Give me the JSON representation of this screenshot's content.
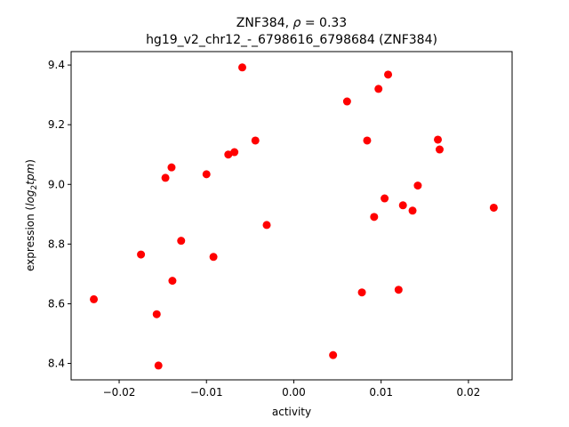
{
  "chart_data": {
    "type": "scatter",
    "title_line1": "ZNF384, ",
    "title_rho_symbol": "ρ",
    "title_rho_value": " = 0.33",
    "title_line2": "hg19_v2_chr12_-_6798616_6798684 (ZNF384)",
    "xlabel": "activity",
    "ylabel_prefix": "expression (",
    "ylabel_log": "log",
    "ylabel_sub": "2",
    "ylabel_tpm": "tpm",
    "ylabel_suffix": ")",
    "xlim": [
      -0.0255,
      0.025
    ],
    "ylim": [
      8.345,
      9.445
    ],
    "xticks": [
      -0.02,
      -0.01,
      0.0,
      0.01,
      0.02
    ],
    "xtick_labels": [
      "−0.02",
      "−0.01",
      "0.00",
      "0.01",
      "0.02"
    ],
    "yticks": [
      8.4,
      8.6,
      8.8,
      9.0,
      9.2,
      9.4
    ],
    "ytick_labels": [
      "8.4",
      "8.6",
      "8.8",
      "9.0",
      "9.2",
      "9.4"
    ],
    "marker_color": "#ff0000",
    "grid": false,
    "points": [
      {
        "x": -0.0229,
        "y": 8.615
      },
      {
        "x": -0.0175,
        "y": 8.765
      },
      {
        "x": -0.0157,
        "y": 8.565
      },
      {
        "x": -0.0155,
        "y": 8.393
      },
      {
        "x": -0.0147,
        "y": 9.022
      },
      {
        "x": -0.014,
        "y": 9.057
      },
      {
        "x": -0.0139,
        "y": 8.677
      },
      {
        "x": -0.0129,
        "y": 8.811
      },
      {
        "x": -0.01,
        "y": 9.034
      },
      {
        "x": -0.0092,
        "y": 8.757
      },
      {
        "x": -0.0075,
        "y": 9.1
      },
      {
        "x": -0.0068,
        "y": 9.108
      },
      {
        "x": -0.0059,
        "y": 9.392
      },
      {
        "x": -0.0044,
        "y": 9.147
      },
      {
        "x": -0.0031,
        "y": 8.864
      },
      {
        "x": 0.0045,
        "y": 8.428
      },
      {
        "x": 0.0061,
        "y": 9.278
      },
      {
        "x": 0.0078,
        "y": 8.638
      },
      {
        "x": 0.0084,
        "y": 9.147
      },
      {
        "x": 0.0092,
        "y": 8.891
      },
      {
        "x": 0.0097,
        "y": 9.32
      },
      {
        "x": 0.0104,
        "y": 8.953
      },
      {
        "x": 0.0108,
        "y": 9.368
      },
      {
        "x": 0.012,
        "y": 8.647
      },
      {
        "x": 0.0125,
        "y": 8.93
      },
      {
        "x": 0.0136,
        "y": 8.912
      },
      {
        "x": 0.0142,
        "y": 8.996
      },
      {
        "x": 0.0165,
        "y": 9.15
      },
      {
        "x": 0.0167,
        "y": 9.117
      },
      {
        "x": 0.0229,
        "y": 8.922
      }
    ]
  }
}
